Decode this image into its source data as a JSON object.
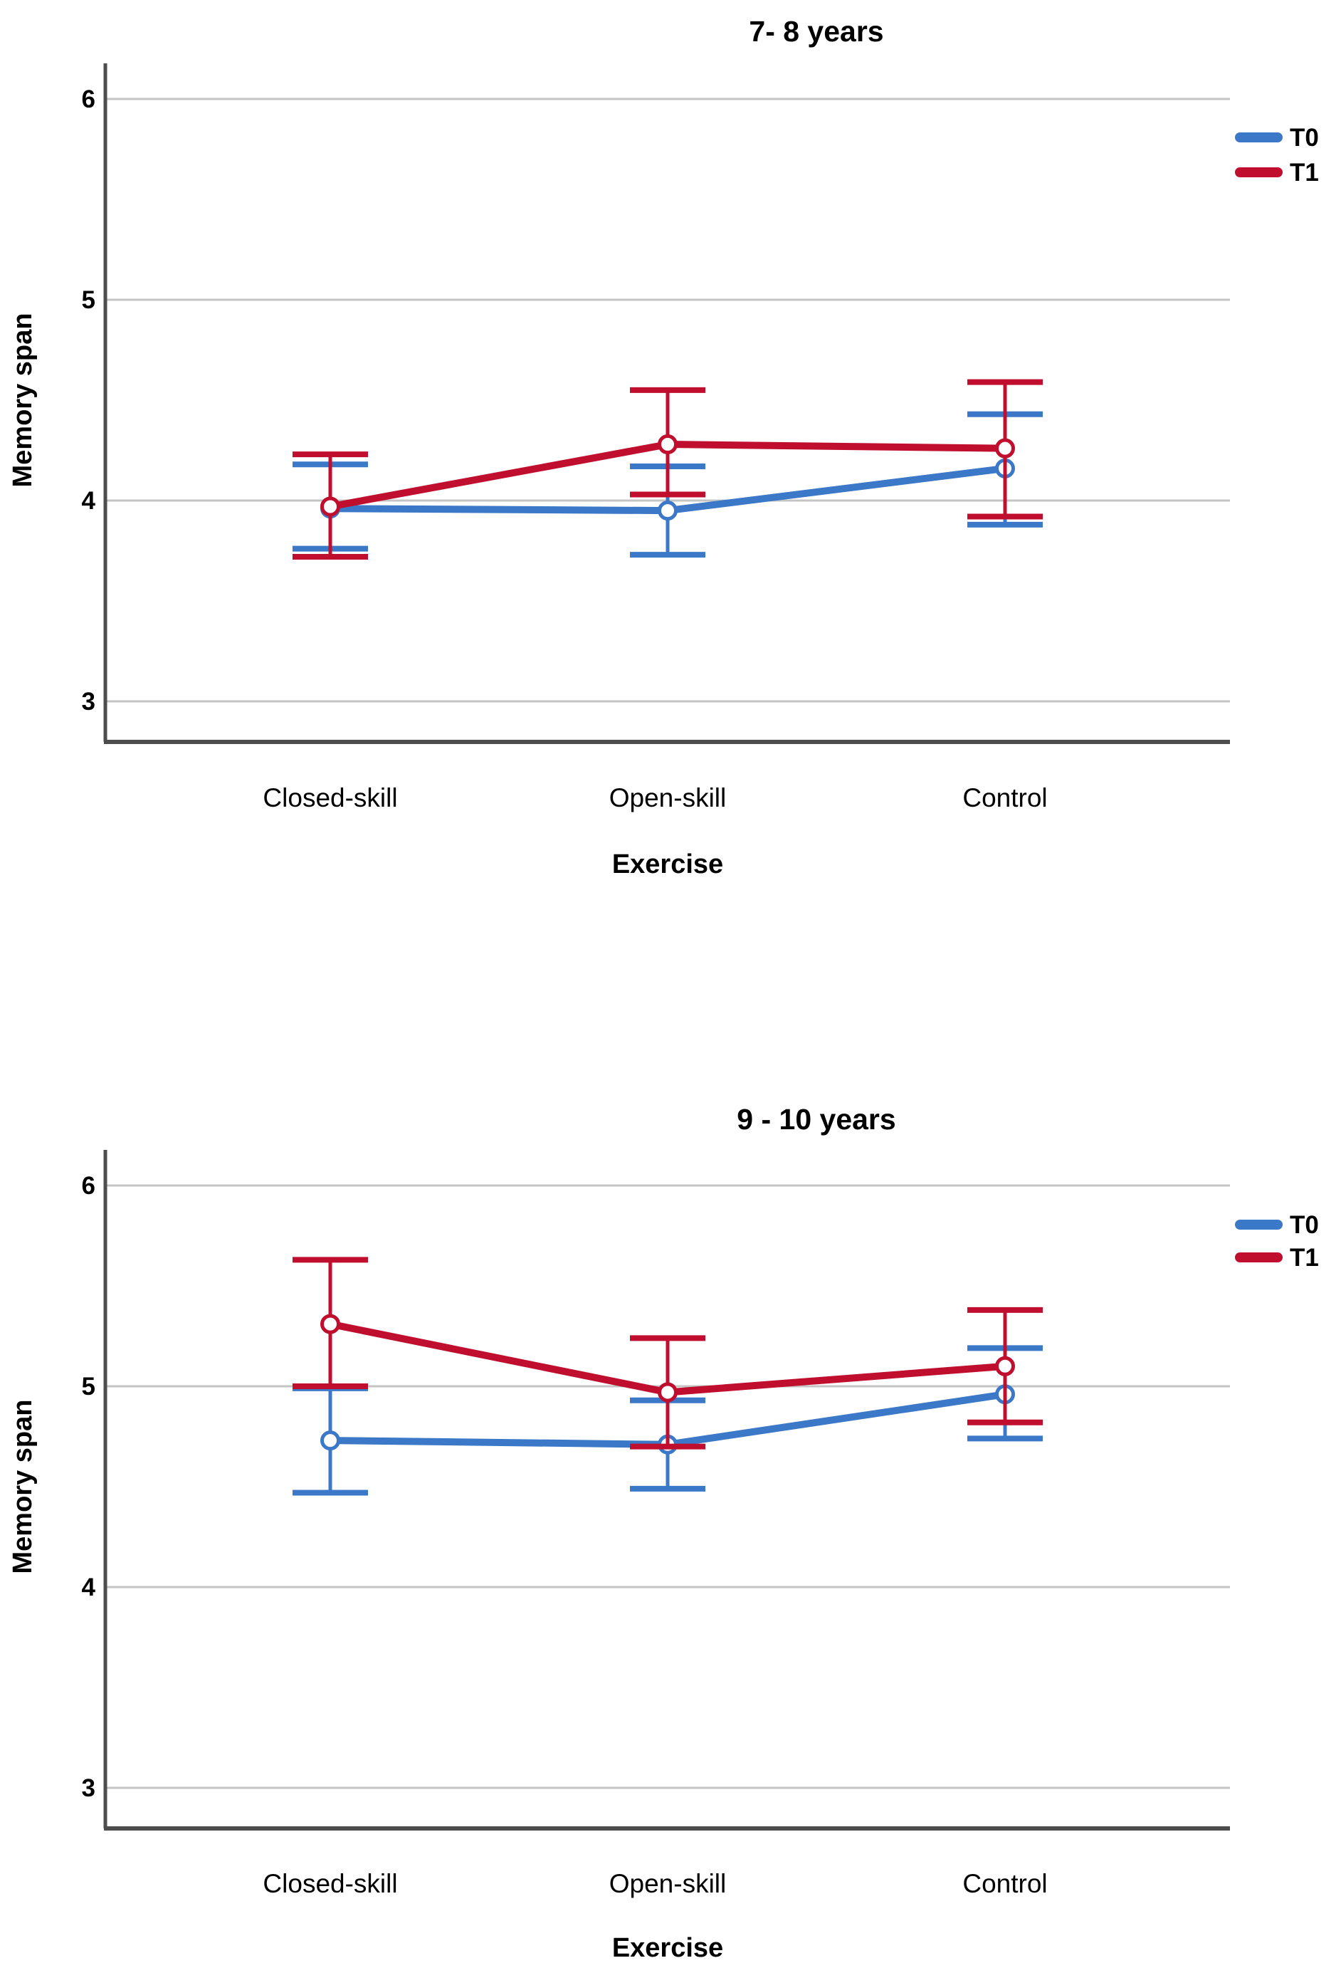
{
  "background_color": "#ffffff",
  "axis_color": "#4d4d4d",
  "gridline_color": "#c4c4c4",
  "chart_data": [
    {
      "type": "line",
      "title": "7- 8 years",
      "xlabel": "Exercise",
      "ylabel": "Memory span",
      "categories": [
        "Closed-skill",
        "Open-skill",
        "Control"
      ],
      "y_ticks": [
        3,
        4,
        5,
        6
      ],
      "ylim": [
        2.8,
        6.2
      ],
      "grid": "horizontal-only",
      "legend_position": "right",
      "has_error_bars": true,
      "marker": "open-circle",
      "series": [
        {
          "name": "T0",
          "color": "#3C78C8",
          "means": [
            3.96,
            3.95,
            4.16
          ],
          "ci_low": [
            3.76,
            3.73,
            3.88
          ],
          "ci_high": [
            4.18,
            4.17,
            4.43
          ]
        },
        {
          "name": "T1",
          "color": "#C00E2E",
          "means": [
            3.97,
            4.28,
            4.26
          ],
          "ci_low": [
            3.72,
            4.03,
            3.92
          ],
          "ci_high": [
            4.23,
            4.55,
            4.59
          ]
        }
      ]
    },
    {
      "type": "line",
      "title": "9 - 10 years",
      "xlabel": "Exercise",
      "ylabel": "Memory span",
      "categories": [
        "Closed-skill",
        "Open-skill",
        "Control"
      ],
      "y_ticks": [
        3,
        4,
        5,
        6
      ],
      "ylim": [
        2.8,
        6.2
      ],
      "grid": "horizontal-only",
      "legend_position": "right",
      "has_error_bars": true,
      "marker": "open-circle",
      "series": [
        {
          "name": "T0",
          "color": "#3C78C8",
          "means": [
            4.73,
            4.71,
            4.96
          ],
          "ci_low": [
            4.47,
            4.49,
            4.74
          ],
          "ci_high": [
            4.99,
            4.93,
            5.19
          ]
        },
        {
          "name": "T1",
          "color": "#C00E2E",
          "means": [
            5.31,
            4.97,
            5.1
          ],
          "ci_low": [
            5.0,
            4.7,
            4.82
          ],
          "ci_high": [
            5.63,
            5.24,
            5.38
          ]
        }
      ]
    }
  ]
}
